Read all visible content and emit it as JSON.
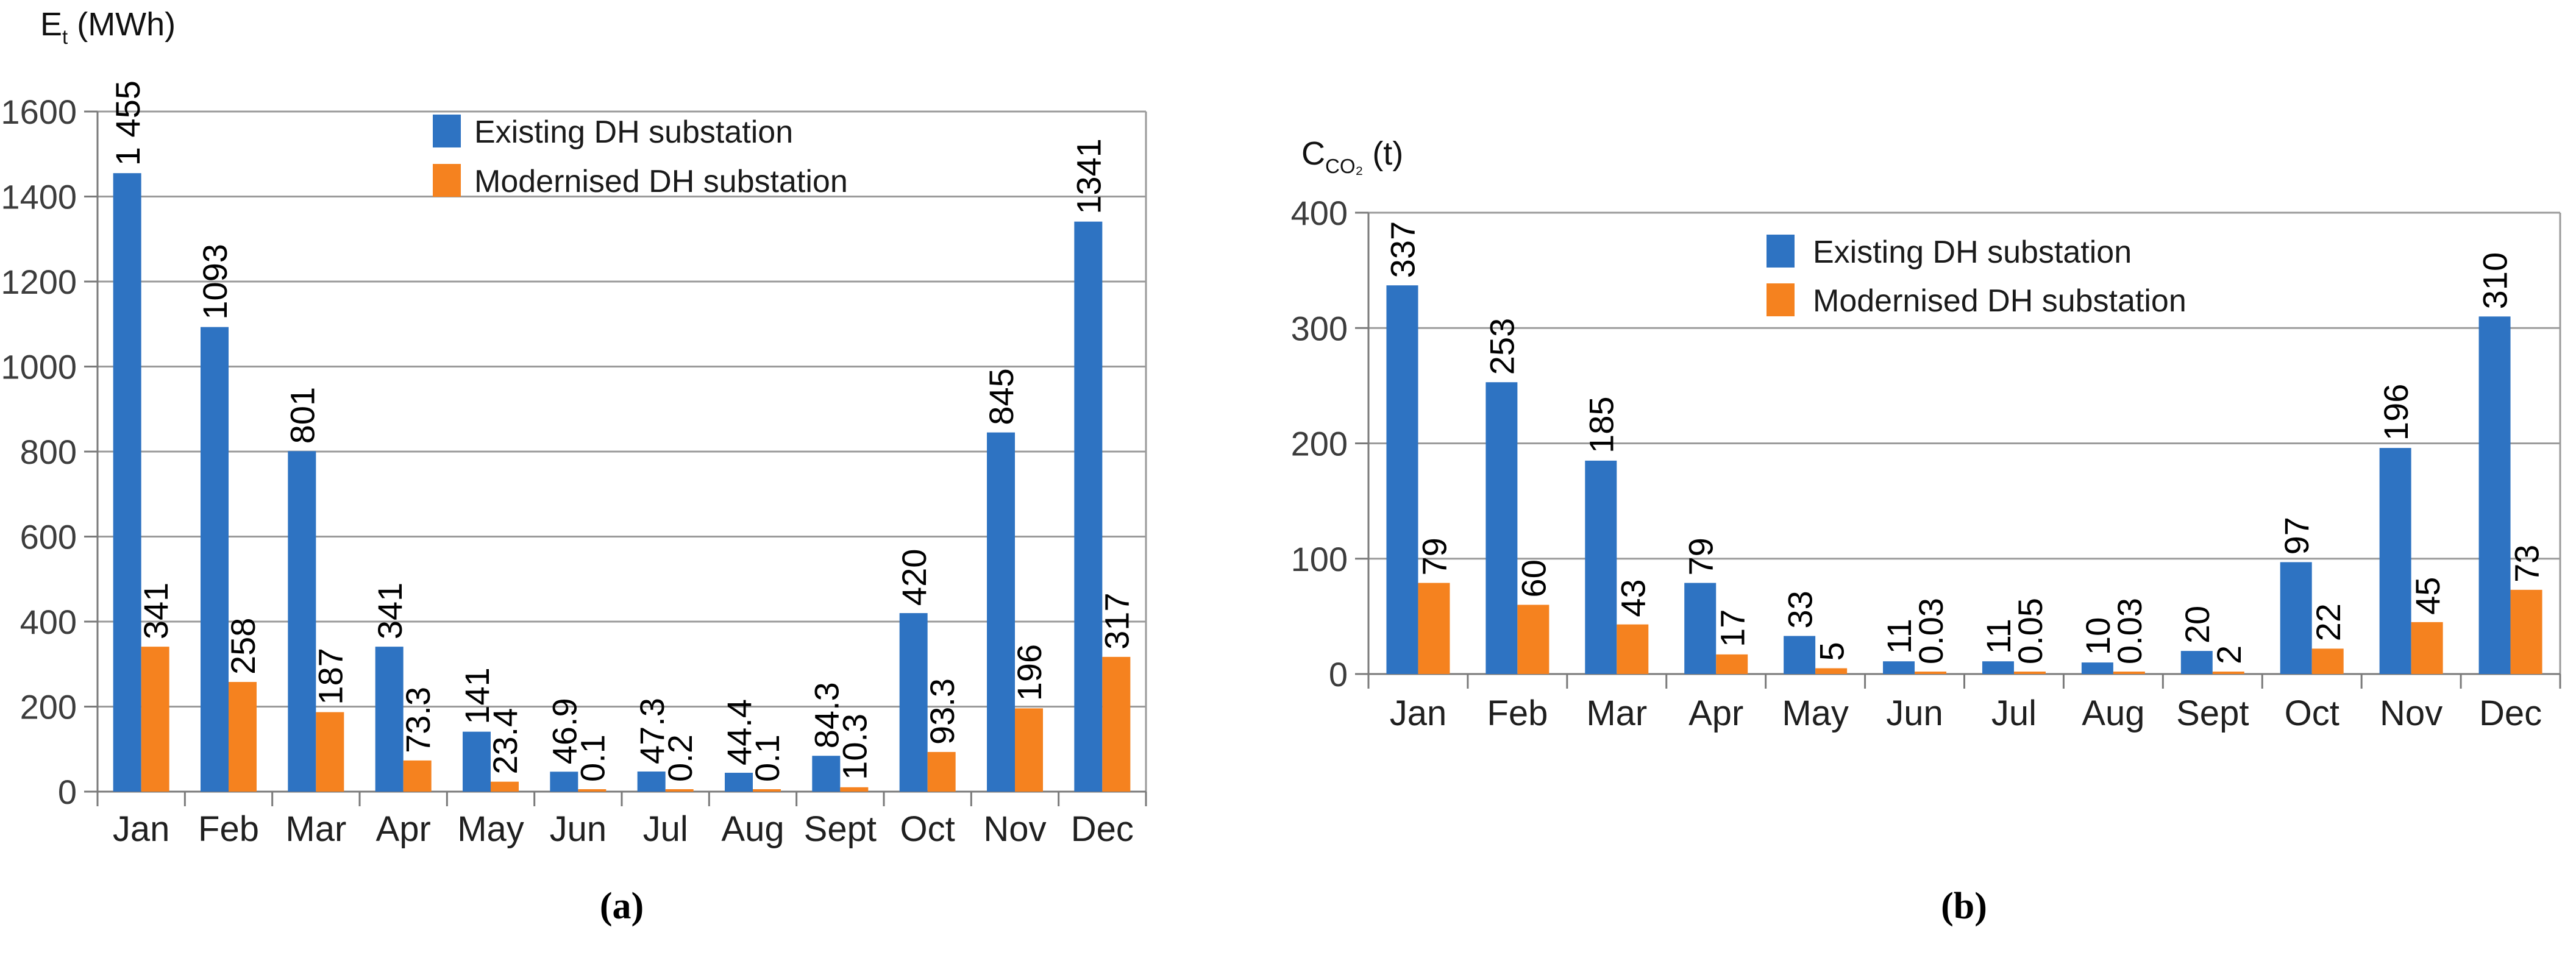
{
  "figure": {
    "captions": {
      "a": "(a)",
      "b": "(b)"
    },
    "legend": {
      "existing": "Existing DH substation",
      "modernised": "Modernised DH substation"
    },
    "colors": {
      "existing_bar": "#2E73C2",
      "modernised_bar": "#F5821F",
      "gridline": "#9B9B9B",
      "axis": "#7A7A7A",
      "tick_label": "#3C3C3C",
      "month_label": "#1F1F1F",
      "value_label": "#000000",
      "title_label": "#111111"
    }
  },
  "chart_data": [
    {
      "id": "a",
      "type": "bar",
      "title": {
        "symbol": "E",
        "subscript": "t",
        "unit": "(MWh)"
      },
      "ylabel": "Et (MWh)",
      "xlabel": "Month",
      "ylim": [
        0,
        1600
      ],
      "ystep": 200,
      "grid": true,
      "legend_position": "top-center-inside",
      "categories": [
        "Jan",
        "Feb",
        "Mar",
        "Apr",
        "May",
        "Jun",
        "Jul",
        "Aug",
        "Sept",
        "Oct",
        "Nov",
        "Dec"
      ],
      "series": [
        {
          "name": "Existing DH substation",
          "color_key": "existing",
          "values": [
            1455,
            1093,
            801,
            341,
            141,
            46.9,
            47.3,
            44.4,
            84.3,
            420,
            845,
            1341
          ],
          "labels": [
            "1 455",
            "1093",
            "801",
            "341",
            "141",
            "46.9",
            "47.3",
            "44.4",
            "84.3",
            "420",
            "845",
            "1341"
          ]
        },
        {
          "name": "Modernised DH substation",
          "color_key": "modernised",
          "values": [
            341,
            258,
            187,
            73.3,
            23.4,
            0.1,
            0.2,
            0.1,
            10.3,
            93.3,
            196,
            317
          ],
          "labels": [
            "341",
            "258",
            "187",
            "73.3",
            "23.4",
            "0.1",
            "0.2",
            "0.1",
            "10.3",
            "93.3",
            "196",
            "317"
          ]
        }
      ]
    },
    {
      "id": "b",
      "type": "bar",
      "title": {
        "symbol": "C",
        "subscript": "CO2",
        "unit": "(t)"
      },
      "ylabel": "CCO2 (t)",
      "xlabel": "Month",
      "ylim": [
        0,
        400
      ],
      "ystep": 100,
      "grid": true,
      "legend_position": "top-right-inside",
      "categories": [
        "Jan",
        "Feb",
        "Mar",
        "Apr",
        "May",
        "Jun",
        "Jul",
        "Aug",
        "Sept",
        "Oct",
        "Nov",
        "Dec"
      ],
      "series": [
        {
          "name": "Existing DH substation",
          "color_key": "existing",
          "values": [
            337,
            253,
            185,
            79,
            33,
            11,
            11,
            10,
            20,
            97,
            196,
            310
          ],
          "labels": [
            "337",
            "253",
            "185",
            "79",
            "33",
            "11",
            "11",
            "10",
            "20",
            "97",
            "196",
            "310"
          ]
        },
        {
          "name": "Modernised DH substation",
          "color_key": "modernised",
          "values": [
            79,
            60,
            43,
            17,
            5,
            0.03,
            0.05,
            0.03,
            2,
            22,
            45,
            73
          ],
          "labels": [
            "79",
            "60",
            "43",
            "17",
            "5",
            "0.03",
            "0.05",
            "0.03",
            "2",
            "22",
            "45",
            "73"
          ]
        }
      ]
    }
  ]
}
